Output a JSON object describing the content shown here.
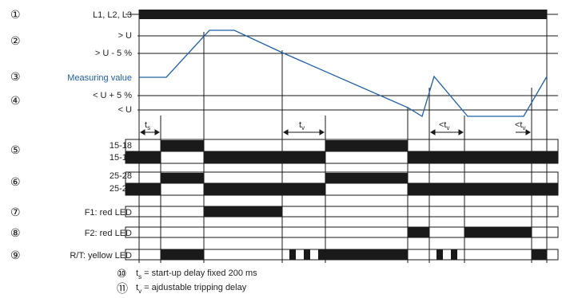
{
  "colors": {
    "signal": "#1f5fa8",
    "ink": "#1a1a1a",
    "measuring_label": "#1f5fa8"
  },
  "numbers": [
    "①",
    "②",
    "③",
    "④",
    "⑤",
    "⑥",
    "⑦",
    "⑧",
    "⑨",
    "⑩",
    "⑪"
  ],
  "labels": {
    "supply": "L1, L2, L3",
    "upper": "> U",
    "upper_hyst": "> U - 5 %",
    "measuring": "Measuring value",
    "lower_hyst": "< U + 5 %",
    "lower": "< U",
    "c15_18": "15-18",
    "c15_16": "15-16",
    "c25_28": "25-28",
    "c25_26": "25-26",
    "led_f1": "F1: red LED",
    "led_f2": "F2: red LED",
    "led_rt": "R/T: yellow LED"
  },
  "timing": {
    "ts": "t",
    "ts_sub": "s",
    "tv": "t",
    "tv_sub": "v",
    "tv_lt1": "<t",
    "tv_lt1_sub": "v",
    "tv_lt2": "<t",
    "tv_lt2_sub": "v"
  },
  "notes": {
    "n10_t": "t",
    "n10_sub": "s",
    "n10_text": " = start-up delay fixed 200 ms",
    "n11_t": "t",
    "n11_sub": "v",
    "n11_text": " = ajdustable tripping delay"
  }
}
